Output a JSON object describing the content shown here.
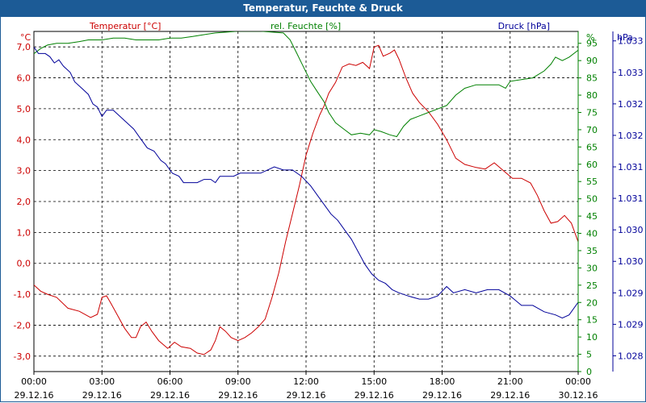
{
  "window": {
    "title": "Temperatur, Feuchte & Druck"
  },
  "chart_data": {
    "type": "line",
    "title": "Temperatur, Feuchte & Druck",
    "x_labels": [
      {
        "time": "00:00",
        "date": "29.12.16"
      },
      {
        "time": "03:00",
        "date": "29.12.16"
      },
      {
        "time": "06:00",
        "date": "29.12.16"
      },
      {
        "time": "09:00",
        "date": "29.12.16"
      },
      {
        "time": "12:00",
        "date": "29.12.16"
      },
      {
        "time": "15:00",
        "date": "29.12.16"
      },
      {
        "time": "18:00",
        "date": "29.12.16"
      },
      {
        "time": "21:00",
        "date": "29.12.16"
      },
      {
        "time": "00:00",
        "date": "30.12.16"
      }
    ],
    "xlim": [
      0,
      24
    ],
    "grid": true,
    "axes": {
      "temperature": {
        "label": "Temperatur [°C]",
        "unit": "°C",
        "ylim": [
          -3.5,
          7.5
        ],
        "color": "#cc0000",
        "ticks": [
          -3,
          -2,
          -1,
          0,
          1,
          2,
          3,
          4,
          5,
          6,
          7
        ],
        "tick_labels": [
          "-3,0",
          "-2,0",
          "-1,0",
          "0,0",
          "1,0",
          "2,0",
          "3,0",
          "4,0",
          "5,0",
          "6,0",
          "7,0"
        ]
      },
      "humidity": {
        "label": "rel. Feuchte [%]",
        "unit": "%",
        "ylim": [
          0,
          98.44
        ],
        "color": "#008000",
        "ticks": [
          0,
          5,
          10,
          15,
          20,
          25,
          30,
          35,
          40,
          45,
          50,
          55,
          60,
          65,
          70,
          75,
          80,
          85,
          90,
          95
        ],
        "tick_labels": [
          "0",
          "5",
          "10",
          "15",
          "20",
          "25",
          "30",
          "35",
          "40",
          "45",
          "50",
          "55",
          "60",
          "65",
          "70",
          "75",
          "80",
          "85",
          "90",
          "95"
        ]
      },
      "pressure": {
        "label": "Druck [hPa]",
        "unit": "hPa",
        "ylim": [
          1027.85,
          1033.25
        ],
        "color": "#000099",
        "ticks": [
          1028.1,
          1028.6,
          1029.1,
          1029.6,
          1030.1,
          1030.6,
          1031.1,
          1031.6,
          1032.1,
          1032.6,
          1033.1
        ],
        "tick_labels": [
          "1.028",
          "1.029",
          "1.029",
          "1.030",
          "1.030",
          "1.031",
          "1.031",
          "1.032",
          "1.032",
          "1.033",
          "1.033"
        ]
      }
    },
    "series": [
      {
        "name": "Temperatur",
        "axis": "temperature",
        "color": "#cc0000",
        "points": [
          [
            0.0,
            -0.7
          ],
          [
            0.3,
            -0.9
          ],
          [
            0.6,
            -1.0
          ],
          [
            1.0,
            -1.1
          ],
          [
            1.5,
            -1.45
          ],
          [
            2.0,
            -1.55
          ],
          [
            2.5,
            -1.75
          ],
          [
            2.8,
            -1.65
          ],
          [
            3.0,
            -1.1
          ],
          [
            3.2,
            -1.05
          ],
          [
            3.4,
            -1.3
          ],
          [
            3.7,
            -1.7
          ],
          [
            4.0,
            -2.1
          ],
          [
            4.3,
            -2.4
          ],
          [
            4.5,
            -2.4
          ],
          [
            4.7,
            -2.05
          ],
          [
            4.95,
            -1.9
          ],
          [
            5.2,
            -2.2
          ],
          [
            5.5,
            -2.5
          ],
          [
            5.9,
            -2.75
          ],
          [
            6.2,
            -2.55
          ],
          [
            6.5,
            -2.7
          ],
          [
            6.9,
            -2.75
          ],
          [
            7.2,
            -2.9
          ],
          [
            7.5,
            -2.95
          ],
          [
            7.8,
            -2.8
          ],
          [
            8.0,
            -2.5
          ],
          [
            8.2,
            -2.05
          ],
          [
            8.45,
            -2.2
          ],
          [
            8.7,
            -2.4
          ],
          [
            9.0,
            -2.5
          ],
          [
            9.3,
            -2.4
          ],
          [
            9.6,
            -2.25
          ],
          [
            9.9,
            -2.05
          ],
          [
            10.2,
            -1.8
          ],
          [
            10.5,
            -1.1
          ],
          [
            10.8,
            -0.3
          ],
          [
            11.1,
            0.7
          ],
          [
            11.4,
            1.6
          ],
          [
            11.7,
            2.5
          ],
          [
            12.0,
            3.5
          ],
          [
            12.3,
            4.2
          ],
          [
            12.6,
            4.8
          ],
          [
            12.8,
            5.1
          ],
          [
            13.0,
            5.5
          ],
          [
            13.3,
            5.85
          ],
          [
            13.6,
            6.35
          ],
          [
            13.9,
            6.45
          ],
          [
            14.2,
            6.4
          ],
          [
            14.5,
            6.5
          ],
          [
            14.8,
            6.3
          ],
          [
            15.0,
            7.0
          ],
          [
            15.2,
            7.05
          ],
          [
            15.4,
            6.7
          ],
          [
            15.7,
            6.8
          ],
          [
            15.9,
            6.9
          ],
          [
            16.1,
            6.6
          ],
          [
            16.4,
            6.0
          ],
          [
            16.7,
            5.5
          ],
          [
            17.0,
            5.2
          ],
          [
            17.4,
            4.9
          ],
          [
            17.8,
            4.5
          ],
          [
            18.2,
            4.0
          ],
          [
            18.6,
            3.4
          ],
          [
            19.0,
            3.2
          ],
          [
            19.5,
            3.1
          ],
          [
            19.9,
            3.05
          ],
          [
            20.3,
            3.25
          ],
          [
            20.7,
            3.0
          ],
          [
            21.1,
            2.75
          ],
          [
            21.5,
            2.75
          ],
          [
            21.9,
            2.6
          ],
          [
            22.2,
            2.2
          ],
          [
            22.5,
            1.7
          ],
          [
            22.8,
            1.3
          ],
          [
            23.1,
            1.35
          ],
          [
            23.4,
            1.55
          ],
          [
            23.7,
            1.3
          ],
          [
            24.0,
            0.7
          ]
        ]
      },
      {
        "name": "rel. Feuchte",
        "axis": "humidity",
        "color": "#008000",
        "points": [
          [
            0.0,
            92
          ],
          [
            0.3,
            93.5
          ],
          [
            0.6,
            94.5
          ],
          [
            1.0,
            95
          ],
          [
            1.5,
            95
          ],
          [
            2.0,
            95.5
          ],
          [
            2.4,
            96
          ],
          [
            3.0,
            96
          ],
          [
            3.5,
            96.5
          ],
          [
            4.0,
            96.5
          ],
          [
            4.5,
            96
          ],
          [
            5.0,
            96
          ],
          [
            5.5,
            96
          ],
          [
            6.0,
            96.5
          ],
          [
            6.5,
            96.5
          ],
          [
            7.0,
            97
          ],
          [
            7.5,
            97.5
          ],
          [
            8.0,
            98
          ],
          [
            9.0,
            98.5
          ],
          [
            10.0,
            98.5
          ],
          [
            11.0,
            98
          ],
          [
            11.3,
            96
          ],
          [
            11.6,
            92
          ],
          [
            11.9,
            88
          ],
          [
            12.2,
            84
          ],
          [
            12.5,
            81
          ],
          [
            12.8,
            78
          ],
          [
            13.0,
            75
          ],
          [
            13.3,
            72
          ],
          [
            13.7,
            70
          ],
          [
            14.0,
            68.5
          ],
          [
            14.4,
            69
          ],
          [
            14.8,
            68.5
          ],
          [
            15.0,
            70
          ],
          [
            15.3,
            69.5
          ],
          [
            15.7,
            68.5
          ],
          [
            16.0,
            68
          ],
          [
            16.3,
            71
          ],
          [
            16.6,
            73
          ],
          [
            17.0,
            74
          ],
          [
            17.4,
            75
          ],
          [
            17.8,
            76
          ],
          [
            18.2,
            77
          ],
          [
            18.6,
            80
          ],
          [
            19.0,
            82
          ],
          [
            19.5,
            83
          ],
          [
            20.0,
            83
          ],
          [
            20.5,
            83
          ],
          [
            20.8,
            82
          ],
          [
            21.0,
            84
          ],
          [
            21.5,
            84.5
          ],
          [
            22.0,
            85
          ],
          [
            22.5,
            87
          ],
          [
            22.8,
            89
          ],
          [
            23.0,
            91
          ],
          [
            23.3,
            90
          ],
          [
            23.6,
            91
          ],
          [
            24.0,
            93
          ]
        ]
      },
      {
        "name": "Druck",
        "axis": "pressure",
        "color": "#000099",
        "points": [
          [
            0.0,
            1033.0
          ],
          [
            0.2,
            1032.9
          ],
          [
            0.5,
            1032.9
          ],
          [
            0.7,
            1032.85
          ],
          [
            0.9,
            1032.75
          ],
          [
            1.1,
            1032.8
          ],
          [
            1.3,
            1032.7
          ],
          [
            1.6,
            1032.6
          ],
          [
            1.8,
            1032.45
          ],
          [
            2.1,
            1032.35
          ],
          [
            2.4,
            1032.25
          ],
          [
            2.6,
            1032.1
          ],
          [
            2.8,
            1032.05
          ],
          [
            3.0,
            1031.9
          ],
          [
            3.2,
            1032.0
          ],
          [
            3.5,
            1032.0
          ],
          [
            3.8,
            1031.9
          ],
          [
            4.1,
            1031.8
          ],
          [
            4.4,
            1031.7
          ],
          [
            4.7,
            1031.55
          ],
          [
            5.0,
            1031.4
          ],
          [
            5.3,
            1031.35
          ],
          [
            5.6,
            1031.2
          ],
          [
            5.8,
            1031.15
          ],
          [
            6.1,
            1031.0
          ],
          [
            6.4,
            1030.95
          ],
          [
            6.6,
            1030.85
          ],
          [
            6.9,
            1030.85
          ],
          [
            7.2,
            1030.85
          ],
          [
            7.5,
            1030.9
          ],
          [
            7.8,
            1030.9
          ],
          [
            8.0,
            1030.85
          ],
          [
            8.2,
            1030.95
          ],
          [
            8.5,
            1030.95
          ],
          [
            8.8,
            1030.95
          ],
          [
            9.1,
            1031.0
          ],
          [
            9.4,
            1031.0
          ],
          [
            9.7,
            1031.0
          ],
          [
            10.0,
            1031.0
          ],
          [
            10.3,
            1031.05
          ],
          [
            10.6,
            1031.1
          ],
          [
            11.0,
            1031.05
          ],
          [
            11.4,
            1031.05
          ],
          [
            11.8,
            1030.95
          ],
          [
            12.2,
            1030.8
          ],
          [
            12.5,
            1030.65
          ],
          [
            12.8,
            1030.5
          ],
          [
            13.1,
            1030.35
          ],
          [
            13.4,
            1030.25
          ],
          [
            13.7,
            1030.1
          ],
          [
            14.0,
            1029.95
          ],
          [
            14.3,
            1029.75
          ],
          [
            14.6,
            1029.55
          ],
          [
            14.9,
            1029.4
          ],
          [
            15.2,
            1029.3
          ],
          [
            15.5,
            1029.25
          ],
          [
            15.8,
            1029.15
          ],
          [
            16.1,
            1029.1
          ],
          [
            16.5,
            1029.05
          ],
          [
            17.0,
            1029.0
          ],
          [
            17.4,
            1029.0
          ],
          [
            17.8,
            1029.05
          ],
          [
            18.2,
            1029.2
          ],
          [
            18.5,
            1029.1
          ],
          [
            19.0,
            1029.15
          ],
          [
            19.5,
            1029.1
          ],
          [
            20.0,
            1029.15
          ],
          [
            20.5,
            1029.15
          ],
          [
            21.0,
            1029.05
          ],
          [
            21.5,
            1028.9
          ],
          [
            22.0,
            1028.9
          ],
          [
            22.5,
            1028.8
          ],
          [
            23.0,
            1028.75
          ],
          [
            23.3,
            1028.7
          ],
          [
            23.6,
            1028.75
          ],
          [
            24.0,
            1028.95
          ]
        ]
      }
    ]
  }
}
